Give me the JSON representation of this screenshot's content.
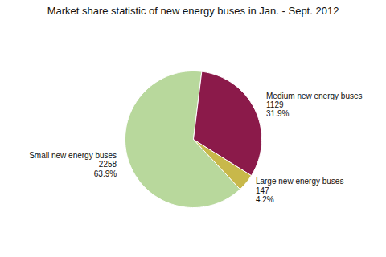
{
  "chart_data": {
    "type": "pie",
    "title": "Market share statistic of new energy buses in Jan. - Sept. 2012",
    "categories": [
      "Small new energy buses",
      "Large new energy buses",
      "Medium new energy buses"
    ],
    "values": [
      2258,
      147,
      1129
    ],
    "percentage_labels": [
      "63.9%",
      "4.2%",
      "31.9%"
    ],
    "colors": [
      "#b8d89c",
      "#c8b84a",
      "#8b1a4a"
    ],
    "data_labels": true
  }
}
